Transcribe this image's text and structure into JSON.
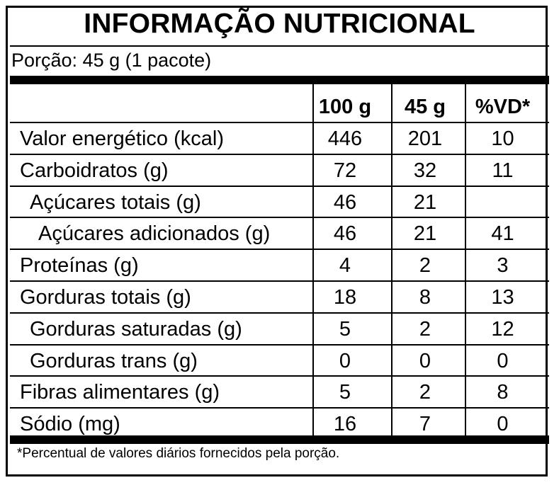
{
  "label": {
    "title": "INFORMAÇÃO NUTRICIONAL",
    "portion": "Porção: 45 g (1 pacote)",
    "headers": [
      "100 g",
      "45 g",
      "%VD*"
    ],
    "rows": [
      {
        "name": "Valor energético (kcal)",
        "per100": "446",
        "perPortion": "201",
        "vd": "10",
        "indent": 0
      },
      {
        "name": "Carboidratos (g)",
        "per100": "72",
        "perPortion": "32",
        "vd": "11",
        "indent": 0
      },
      {
        "name": "Açúcares totais (g)",
        "per100": "46",
        "perPortion": "21",
        "vd": "",
        "indent": 1
      },
      {
        "name": "Açúcares adicionados (g)",
        "per100": "46",
        "perPortion": "21",
        "vd": "41",
        "indent": 2
      },
      {
        "name": "Proteínas (g)",
        "per100": "4",
        "perPortion": "2",
        "vd": "3",
        "indent": 0
      },
      {
        "name": "Gorduras totais (g)",
        "per100": "18",
        "perPortion": "8",
        "vd": "13",
        "indent": 0
      },
      {
        "name": "Gorduras saturadas (g)",
        "per100": "5",
        "perPortion": "2",
        "vd": "12",
        "indent": 1
      },
      {
        "name": "Gorduras trans (g)",
        "per100": "0",
        "perPortion": "0",
        "vd": "0",
        "indent": 1
      },
      {
        "name": "Fibras alimentares (g)",
        "per100": "5",
        "perPortion": "2",
        "vd": "8",
        "indent": 0
      },
      {
        "name": "Sódio (mg)",
        "per100": "16",
        "perPortion": "7",
        "vd": "0",
        "indent": 0
      }
    ],
    "footnote": "*Percentual de valores diários fornecidos pela porção."
  }
}
